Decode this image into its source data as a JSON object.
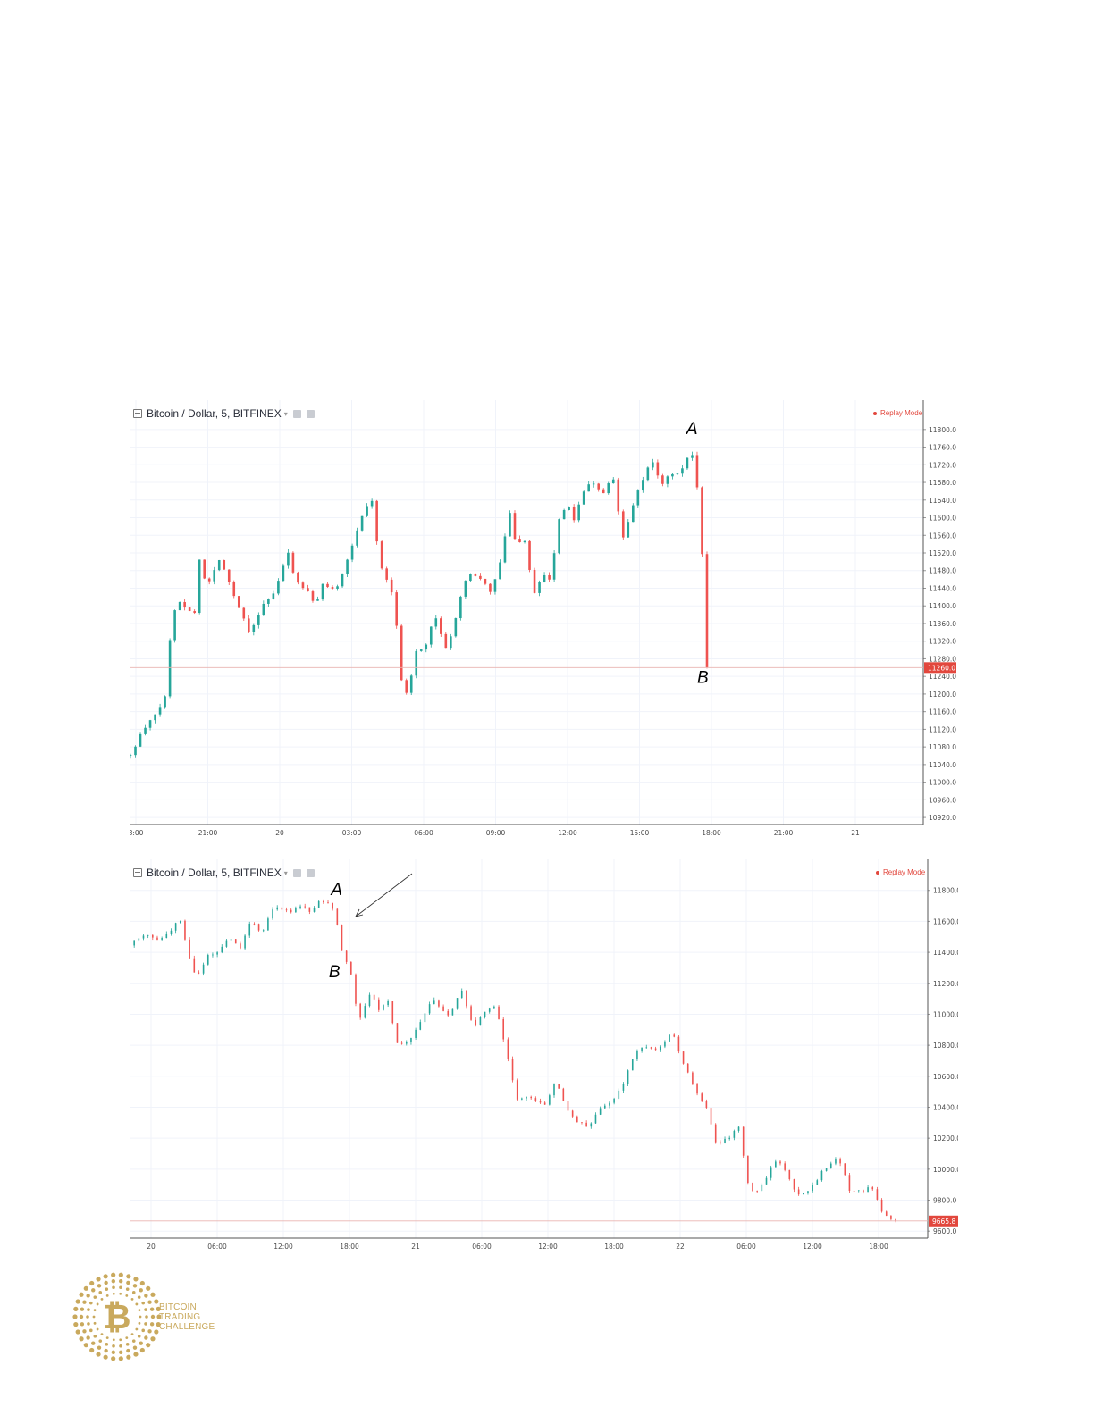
{
  "chart_data": [
    {
      "type": "candlestick",
      "title": "Bitcoin / Dollar, 5, BITFINEX",
      "badge": "Replay Mode",
      "x_ticks": [
        "8:00",
        "21:00",
        "20",
        "03:00",
        "06:00",
        "09:00",
        "12:00",
        "15:00",
        "18:00",
        "21:00",
        "21"
      ],
      "y_ticks": [
        11800.0,
        11760.0,
        11720.0,
        11680.0,
        11640.0,
        11600.0,
        11560.0,
        11520.0,
        11480.0,
        11440.0,
        11400.0,
        11360.0,
        11320.0,
        11280.0,
        11240.0,
        11200.0,
        11160.0,
        11120.0,
        11080.0,
        11040.0,
        11000.0,
        10960.0,
        10920.0
      ],
      "y_tick_labels": [
        "11800.0",
        "11760.0",
        "11720.0",
        "11680.0",
        "11640.0",
        "11600.0",
        "11560.0",
        "11520.0",
        "11480.0",
        "11440.0",
        "11400.0",
        "11360.0",
        "11320.0",
        "11280.0",
        "11240.0",
        "11200.0",
        "11160.0",
        "11120.0",
        "11080.0",
        "11040.0",
        "11000.0",
        "10960.0",
        "10920.0"
      ],
      "ylim": [
        10904,
        11826
      ],
      "last_price": 11260.0,
      "last_price_label": "11260.0",
      "path": [
        [
          0,
          11060
        ],
        [
          1,
          11110
        ],
        [
          2.5,
          11160
        ],
        [
          3.3,
          11200
        ],
        [
          3.8,
          11380
        ],
        [
          4.5,
          11410
        ],
        [
          6,
          11380
        ],
        [
          6.4,
          11520
        ],
        [
          7,
          11440
        ],
        [
          8.3,
          11510
        ],
        [
          9.6,
          11420
        ],
        [
          10.3,
          11380
        ],
        [
          11,
          11340
        ],
        [
          12.2,
          11400
        ],
        [
          13.3,
          11430
        ],
        [
          14.5,
          11520
        ],
        [
          15.4,
          11450
        ],
        [
          16.4,
          11430
        ],
        [
          17,
          11400
        ],
        [
          17.8,
          11450
        ],
        [
          19,
          11440
        ],
        [
          20,
          11500
        ],
        [
          21,
          11580
        ],
        [
          22.2,
          11650
        ],
        [
          23,
          11500
        ],
        [
          24,
          11440
        ],
        [
          24.4,
          11390
        ],
        [
          25.1,
          11210
        ],
        [
          25.6,
          11200
        ],
        [
          26.3,
          11300
        ],
        [
          27.2,
          11310
        ],
        [
          28.1,
          11380
        ],
        [
          29.1,
          11300
        ],
        [
          30,
          11370
        ],
        [
          31.1,
          11480
        ],
        [
          32.2,
          11460
        ],
        [
          33.3,
          11430
        ],
        [
          34.2,
          11510
        ],
        [
          35,
          11610
        ],
        [
          35.5,
          11550
        ],
        [
          36.5,
          11540
        ],
        [
          37.2,
          11420
        ],
        [
          38,
          11470
        ],
        [
          38.6,
          11450
        ],
        [
          39.6,
          11600
        ],
        [
          40.5,
          11630
        ],
        [
          40.8,
          11580
        ],
        [
          41.5,
          11640
        ],
        [
          42.5,
          11690
        ],
        [
          43.5,
          11650
        ],
        [
          44.5,
          11690
        ],
        [
          45,
          11610
        ],
        [
          45.5,
          11550
        ],
        [
          46.5,
          11640
        ],
        [
          47,
          11670
        ],
        [
          48,
          11730
        ],
        [
          49,
          11680
        ],
        [
          50,
          11700
        ],
        [
          51.2,
          11710
        ],
        [
          51.6,
          11765
        ],
        [
          52,
          11720
        ],
        [
          52.4,
          11640
        ],
        [
          52.7,
          11520
        ],
        [
          52.9,
          11470
        ],
        [
          53.1,
          11260
        ]
      ],
      "annotations": [
        {
          "text": "A",
          "x": 51.8,
          "y": 11790
        },
        {
          "text": "B",
          "x": 52.8,
          "y": 11225
        }
      ]
    },
    {
      "type": "candlestick",
      "title": "Bitcoin / Dollar, 5, BITFINEX",
      "badge": "Replay Mode",
      "x_ticks": [
        "20",
        "06:00",
        "12:00",
        "18:00",
        "21",
        "06:00",
        "12:00",
        "18:00",
        "22",
        "06:00",
        "12:00",
        "18:00"
      ],
      "y_ticks": [
        11800.0,
        11600.0,
        11400.0,
        11200.0,
        11000.0,
        10800.0,
        10600.0,
        10400.0,
        10200.0,
        10000.0,
        9800.0,
        9600.0
      ],
      "y_tick_labels": [
        "11800.0",
        "11600.0",
        "11400.0",
        "11200.0",
        "11000.0",
        "10800.0",
        "10600.0",
        "10400.0",
        "10200.0",
        "10000.0",
        "9800.0",
        "9600.0"
      ],
      "ylim": [
        9555,
        11885
      ],
      "last_price": 9665.8,
      "last_price_label": "9665.8",
      "path": [
        [
          0,
          11450
        ],
        [
          1,
          11510
        ],
        [
          3,
          11480
        ],
        [
          4.5,
          11620
        ],
        [
          5.2,
          11430
        ],
        [
          6,
          11220
        ],
        [
          7,
          11370
        ],
        [
          8,
          11400
        ],
        [
          9,
          11500
        ],
        [
          10,
          11420
        ],
        [
          11,
          11610
        ],
        [
          12,
          11520
        ],
        [
          13,
          11700
        ],
        [
          14.5,
          11660
        ],
        [
          15.5,
          11700
        ],
        [
          16.5,
          11660
        ],
        [
          17.3,
          11740
        ],
        [
          18.5,
          11680
        ],
        [
          19.2,
          11400
        ],
        [
          20,
          11250
        ],
        [
          20.7,
          10960
        ],
        [
          21.8,
          11160
        ],
        [
          22.5,
          11020
        ],
        [
          23.5,
          11100
        ],
        [
          24,
          10800
        ],
        [
          25.5,
          10840
        ],
        [
          26.5,
          10990
        ],
        [
          27.5,
          11100
        ],
        [
          28.8,
          10980
        ],
        [
          30,
          11160
        ],
        [
          31,
          10920
        ],
        [
          32,
          11000
        ],
        [
          33,
          11060
        ],
        [
          34,
          10760
        ],
        [
          35,
          10460
        ],
        [
          36,
          10460
        ],
        [
          37.5,
          10420
        ],
        [
          38.5,
          10560
        ],
        [
          39.5,
          10380
        ],
        [
          40.5,
          10300
        ],
        [
          41.5,
          10280
        ],
        [
          42.5,
          10400
        ],
        [
          43.5,
          10420
        ],
        [
          44.5,
          10540
        ],
        [
          46,
          10800
        ],
        [
          47.5,
          10760
        ],
        [
          49,
          10880
        ],
        [
          50,
          10680
        ],
        [
          51,
          10520
        ],
        [
          52,
          10420
        ],
        [
          53,
          10140
        ],
        [
          54,
          10200
        ],
        [
          55,
          10280
        ],
        [
          56,
          9840
        ],
        [
          57,
          9880
        ],
        [
          58.5,
          10080
        ],
        [
          59.5,
          9940
        ],
        [
          60.5,
          9820
        ],
        [
          61.5,
          9880
        ],
        [
          62.5,
          9980
        ],
        [
          64,
          10080
        ],
        [
          65,
          9860
        ],
        [
          66,
          9860
        ],
        [
          67,
          9880
        ],
        [
          68,
          9720
        ],
        [
          69,
          9665.8
        ]
      ],
      "annotations": [
        {
          "text": "A",
          "x": 18.7,
          "y": 11770
        },
        {
          "text": "B",
          "x": 18.5,
          "y": 11240
        }
      ]
    }
  ],
  "logo": {
    "symbol": "₿",
    "lines": [
      "BITCOIN",
      "TRADING",
      "CHALLENGE"
    ]
  },
  "colors": {
    "up": "#26a69a",
    "down": "#ef5350",
    "price_tag": "#e2473d",
    "grid": "#f0f3fa",
    "gold": "#c9a95d"
  }
}
